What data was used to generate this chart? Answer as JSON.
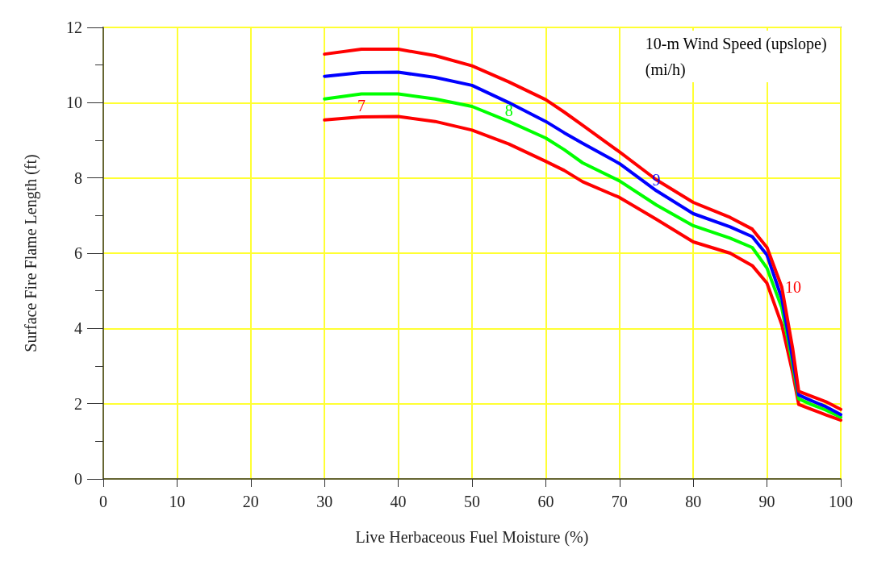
{
  "chart_data": {
    "type": "line",
    "xlabel": "Live Herbaceous Fuel Moisture (%)",
    "ylabel": "Surface Fire Flame Length (ft)",
    "legend_title": "10-m Wind Speed (upslope)\n(mi/h)",
    "legend": false,
    "grid": true,
    "marker": "none",
    "line_style": "solid",
    "xlim": [
      0,
      100
    ],
    "xticks": [
      0,
      10,
      20,
      30,
      40,
      50,
      60,
      70,
      80,
      90,
      100
    ],
    "ylim": [
      0,
      12
    ],
    "yticks": [
      0,
      2,
      4,
      6,
      8,
      10,
      12
    ],
    "x": [
      30,
      35,
      40,
      45,
      50,
      55,
      60,
      62.5,
      65,
      70,
      75,
      80,
      85,
      88,
      90,
      92,
      93.5,
      94.3,
      96,
      98,
      100
    ],
    "series": [
      {
        "name": "7",
        "color": "#ff0000",
        "values": [
          9.54,
          9.62,
          9.63,
          9.5,
          9.27,
          8.9,
          8.44,
          8.2,
          7.9,
          7.48,
          6.9,
          6.3,
          6.0,
          5.67,
          5.2,
          4.1,
          2.8,
          1.98,
          1.85,
          1.7,
          1.56
        ]
      },
      {
        "name": "8",
        "color": "#00ff00",
        "values": [
          10.1,
          10.23,
          10.23,
          10.1,
          9.9,
          9.5,
          9.06,
          8.75,
          8.4,
          7.92,
          7.28,
          6.73,
          6.4,
          6.15,
          5.6,
          4.55,
          3.02,
          2.13,
          1.98,
          1.83,
          1.64
        ]
      },
      {
        "name": "9",
        "color": "#0000ff",
        "values": [
          10.7,
          10.8,
          10.81,
          10.67,
          10.46,
          10.0,
          9.5,
          9.2,
          8.92,
          8.38,
          7.66,
          7.05,
          6.7,
          6.44,
          5.95,
          4.8,
          3.17,
          2.23,
          2.08,
          1.92,
          1.71
        ]
      },
      {
        "name": "10",
        "color": "#ff0000",
        "values": [
          11.29,
          11.42,
          11.42,
          11.25,
          10.98,
          10.55,
          10.08,
          9.75,
          9.4,
          8.69,
          7.95,
          7.35,
          6.95,
          6.64,
          6.15,
          5.1,
          3.44,
          2.33,
          2.2,
          2.05,
          1.85
        ]
      }
    ]
  }
}
